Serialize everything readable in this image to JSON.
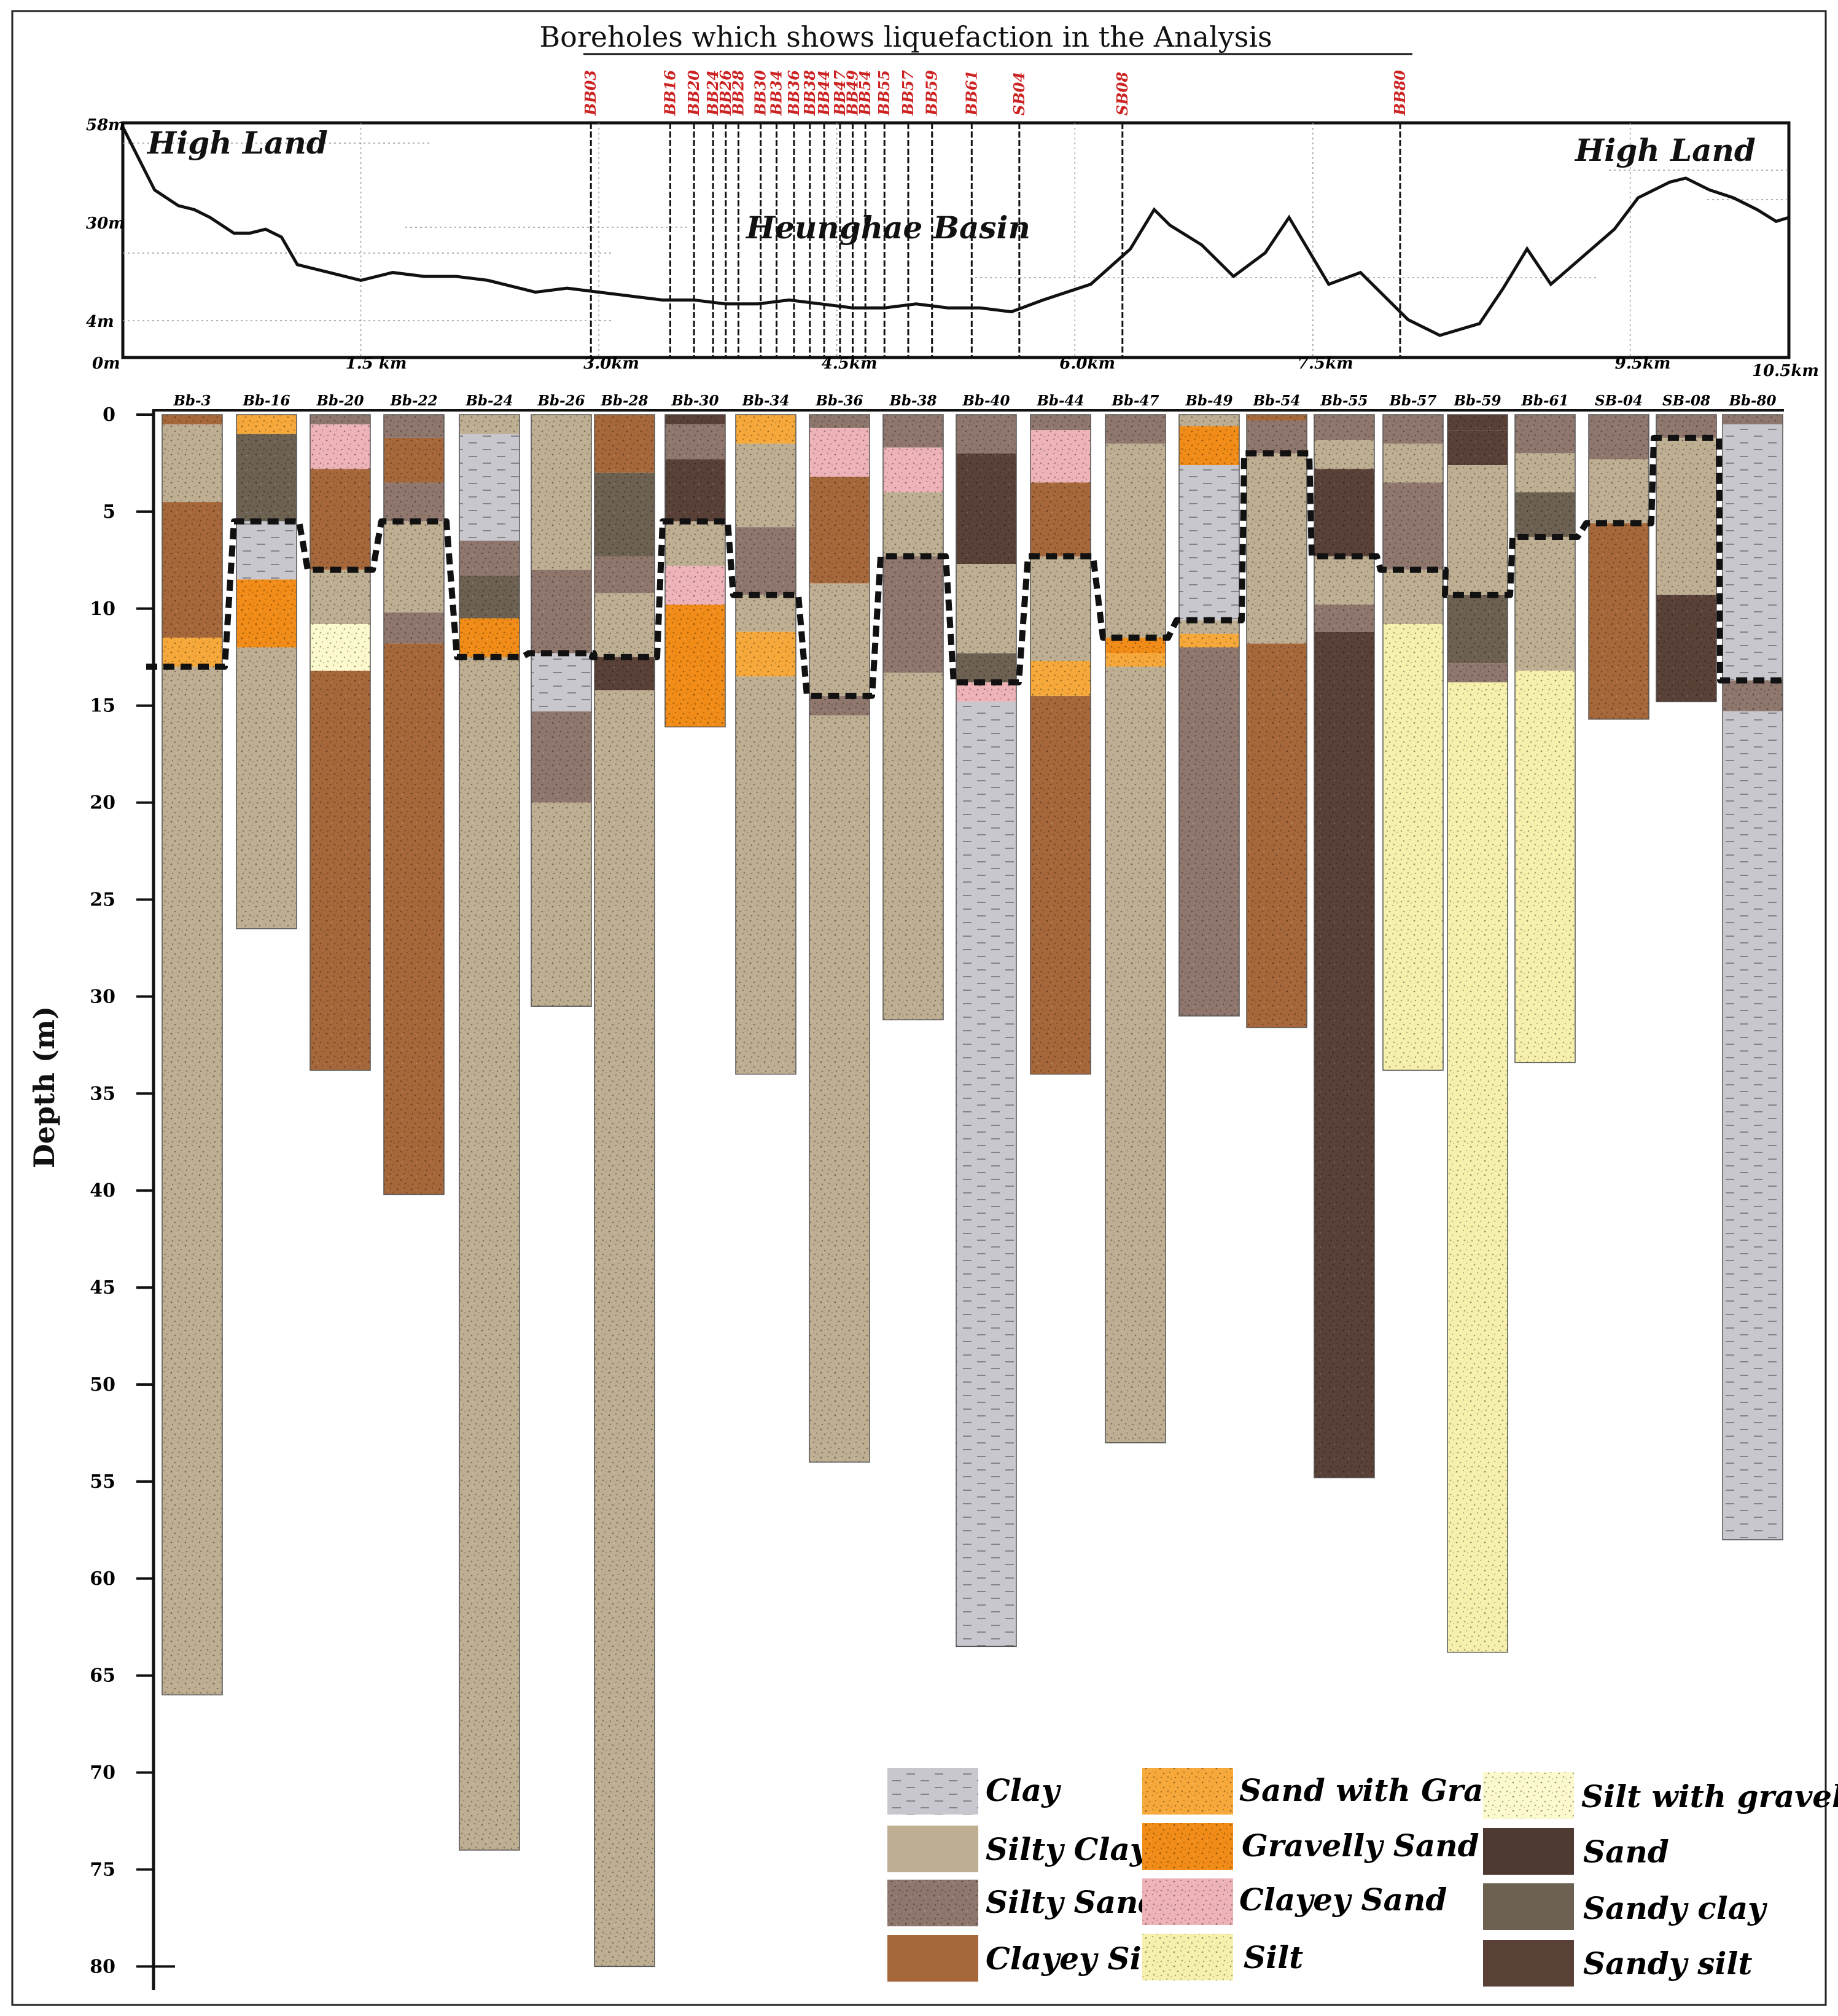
{
  "title": "Boreholes which shows liquefaction in the Analysis",
  "profile": {
    "basin_label": "Heunghae Basin",
    "high_land_left": "High Land",
    "high_land_right": "High Land",
    "elevation_labels": [
      "58m",
      "30m",
      "4m",
      "0m"
    ],
    "distance_labels": [
      "1.5 km",
      "3.0km",
      "4.5km",
      "6.0km",
      "7.5km",
      "9.5km",
      "10.5km"
    ],
    "elevation_profile_m": [
      [
        0,
        58
      ],
      [
        0.2,
        42
      ],
      [
        0.35,
        38
      ],
      [
        0.45,
        37
      ],
      [
        0.55,
        35
      ],
      [
        0.7,
        31
      ],
      [
        0.8,
        31
      ],
      [
        0.9,
        32
      ],
      [
        1.0,
        30
      ],
      [
        1.1,
        23
      ],
      [
        1.3,
        21
      ],
      [
        1.5,
        19
      ],
      [
        1.7,
        21
      ],
      [
        1.9,
        20
      ],
      [
        2.1,
        20
      ],
      [
        2.3,
        19
      ],
      [
        2.6,
        16
      ],
      [
        2.8,
        17
      ],
      [
        3.0,
        16
      ],
      [
        3.2,
        15
      ],
      [
        3.4,
        14
      ],
      [
        3.6,
        14
      ],
      [
        3.8,
        13
      ],
      [
        4.0,
        13
      ],
      [
        4.2,
        14
      ],
      [
        4.4,
        13
      ],
      [
        4.6,
        12
      ],
      [
        4.8,
        12
      ],
      [
        5.0,
        13
      ],
      [
        5.2,
        12
      ],
      [
        5.4,
        12
      ],
      [
        5.6,
        11
      ],
      [
        5.8,
        14
      ],
      [
        6.1,
        18
      ],
      [
        6.35,
        27
      ],
      [
        6.5,
        37
      ],
      [
        6.6,
        33
      ],
      [
        6.8,
        28
      ],
      [
        7.0,
        20
      ],
      [
        7.2,
        26
      ],
      [
        7.35,
        35
      ],
      [
        7.6,
        18
      ],
      [
        7.8,
        21
      ],
      [
        7.95,
        15
      ],
      [
        8.1,
        9
      ],
      [
        8.3,
        5
      ],
      [
        8.55,
        8
      ],
      [
        8.7,
        17
      ],
      [
        8.85,
        27
      ],
      [
        9.0,
        18
      ],
      [
        9.2,
        25
      ],
      [
        9.4,
        32
      ],
      [
        9.55,
        40
      ],
      [
        9.75,
        44
      ],
      [
        9.85,
        45
      ],
      [
        10.0,
        42
      ],
      [
        10.15,
        40
      ],
      [
        10.3,
        37
      ],
      [
        10.42,
        34
      ],
      [
        10.5,
        35
      ]
    ],
    "liquefied_boreholes": [
      {
        "label": "BB03",
        "km": 2.95
      },
      {
        "label": "BB16",
        "km": 3.45
      },
      {
        "label": "BB20",
        "km": 3.6
      },
      {
        "label": "BB24",
        "km": 3.72
      },
      {
        "label": "BB26",
        "km": 3.8
      },
      {
        "label": "BB28",
        "km": 3.88
      },
      {
        "label": "BB30",
        "km": 4.02
      },
      {
        "label": "BB34",
        "km": 4.12
      },
      {
        "label": "BB36",
        "km": 4.23
      },
      {
        "label": "BB38",
        "km": 4.33
      },
      {
        "label": "BB44",
        "km": 4.42
      },
      {
        "label": "BB47",
        "km": 4.52
      },
      {
        "label": "BB49",
        "km": 4.6
      },
      {
        "label": "BB54",
        "km": 4.68
      },
      {
        "label": "BB55",
        "km": 4.8
      },
      {
        "label": "BB57",
        "km": 4.95
      },
      {
        "label": "BB59",
        "km": 5.1
      },
      {
        "label": "BB61",
        "km": 5.35
      },
      {
        "label": "SB04",
        "km": 5.65
      },
      {
        "label": "SB08",
        "km": 6.3
      },
      {
        "label": "BB80",
        "km": 8.05
      }
    ]
  },
  "depth_axis": {
    "label": "Depth (m)",
    "ticks": [
      "0",
      "5",
      "10",
      "15",
      "20",
      "25",
      "30",
      "35",
      "40",
      "45",
      "50",
      "55",
      "60",
      "65",
      "70",
      "75",
      "80"
    ]
  },
  "boreholes": [
    {
      "name": "Bb-3",
      "layers": [
        [
          "Clayey Silt",
          0,
          0.5
        ],
        [
          "Silty Clay",
          0.5,
          4.5
        ],
        [
          "Clayey Silt",
          4.5,
          11.5
        ],
        [
          "Sand with Gravel",
          11.5,
          13
        ],
        [
          "Silty Clay",
          13,
          66
        ]
      ],
      "liq": 13
    },
    {
      "name": "Bb-16",
      "layers": [
        [
          "Sand with Gravel",
          0,
          1
        ],
        [
          "Sandy clay",
          1,
          5.5
        ],
        [
          "Clay",
          5.5,
          8.5
        ],
        [
          "Gravelly Sand",
          8.5,
          12
        ],
        [
          "Silty Clay",
          12,
          26.5
        ]
      ],
      "liq": 5.5
    },
    {
      "name": "Bb-20",
      "layers": [
        [
          "Silty Sand",
          0,
          0.5
        ],
        [
          "Clayey Sand",
          0.5,
          2.8
        ],
        [
          "Clayey Silt",
          2.8,
          8
        ],
        [
          "Silty Clay",
          8,
          10.8
        ],
        [
          "Silt with gravel",
          10.8,
          13.2
        ],
        [
          "Clayey Silt",
          13.2,
          33.8
        ]
      ],
      "liq": 8
    },
    {
      "name": "Bb-22",
      "layers": [
        [
          "Silty Sand",
          0,
          1.2
        ],
        [
          "Clayey Silt",
          1.2,
          3.5
        ],
        [
          "Silty Sand",
          3.5,
          5.5
        ],
        [
          "Silty Clay",
          5.5,
          10.2
        ],
        [
          "Silty Sand",
          10.2,
          11.8
        ],
        [
          "Clayey Silt",
          11.8,
          40.2
        ]
      ],
      "liq": 5.5
    },
    {
      "name": "Bb-24",
      "layers": [
        [
          "Silty Clay",
          0,
          1
        ],
        [
          "Clay",
          1,
          6.5
        ],
        [
          "Silty Sand",
          6.5,
          8.3
        ],
        [
          "Sandy clay",
          8.3,
          10.5
        ],
        [
          "Gravelly Sand",
          10.5,
          12.5
        ],
        [
          "Silty Clay",
          12.5,
          74
        ]
      ],
      "liq": 12.5
    },
    {
      "name": "Bb-26",
      "layers": [
        [
          "Silty Clay",
          0,
          8
        ],
        [
          "Silty Sand",
          8,
          12.3
        ],
        [
          "Clay",
          12.3,
          15.3
        ],
        [
          "Silty Sand",
          15.3,
          20
        ],
        [
          "Silty Clay",
          20,
          30.5
        ]
      ],
      "liq": 12.3
    },
    {
      "name": "Bb-28",
      "layers": [
        [
          "Clayey Silt",
          0,
          3
        ],
        [
          "Sandy clay",
          3,
          7.3
        ],
        [
          "Silty Sand",
          7.3,
          9.2
        ],
        [
          "Silty Clay",
          9.2,
          12.5
        ],
        [
          "Sandy silt",
          12.5,
          14.2
        ],
        [
          "Silty Clay",
          14.2,
          80
        ]
      ],
      "liq": 12.5
    },
    {
      "name": "Bb-30",
      "layers": [
        [
          "Sandy silt",
          0,
          0.5
        ],
        [
          "Silty Sand",
          0.5,
          2.3
        ],
        [
          "Sandy silt",
          2.3,
          5.5
        ],
        [
          "Silty Clay",
          5.5,
          7.8
        ],
        [
          "Clayey Sand",
          7.8,
          9.8
        ],
        [
          "Gravelly Sand",
          9.8,
          16.1
        ]
      ],
      "liq": 5.5
    },
    {
      "name": "Bb-34",
      "layers": [
        [
          "Sand with Gravel",
          0,
          1.5
        ],
        [
          "Silty Clay",
          1.5,
          5.8
        ],
        [
          "Silty Sand",
          5.8,
          9.3
        ],
        [
          "Silty Clay",
          9.3,
          11.2
        ],
        [
          "Sand with Gravel",
          11.2,
          13.5
        ],
        [
          "Silty Clay",
          13.5,
          34
        ]
      ],
      "liq": 9.3
    },
    {
      "name": "Bb-36",
      "layers": [
        [
          "Silty Sand",
          0,
          0.7
        ],
        [
          "Clayey Sand",
          0.7,
          3.2
        ],
        [
          "Clayey Silt",
          3.2,
          8.7
        ],
        [
          "Silty Clay",
          8.7,
          14.5
        ],
        [
          "Silty Sand",
          14.5,
          15.5
        ],
        [
          "Silty Clay",
          15.5,
          54
        ]
      ],
      "liq": 14.5
    },
    {
      "name": "Bb-38",
      "layers": [
        [
          "Silty Sand",
          0,
          1.7
        ],
        [
          "Clayey Sand",
          1.7,
          4
        ],
        [
          "Silty Clay",
          4,
          7.3
        ],
        [
          "Silty Sand",
          7.3,
          13.3
        ],
        [
          "Silty Clay",
          13.3,
          31.2
        ]
      ],
      "liq": 7.3
    },
    {
      "name": "Bb-40",
      "layers": [
        [
          "Silty Sand",
          0,
          2
        ],
        [
          "Sandy silt",
          2,
          7.7
        ],
        [
          "Silty Clay",
          7.7,
          12.3
        ],
        [
          "Sandy clay",
          12.3,
          13.8
        ],
        [
          "Clayey Sand",
          13.8,
          14.8
        ],
        [
          "Clay",
          14.8,
          63.5
        ]
      ],
      "liq": 13.8
    },
    {
      "name": "Bb-44",
      "layers": [
        [
          "Silty Sand",
          0,
          0.8
        ],
        [
          "Clayey Sand",
          0.8,
          3.5
        ],
        [
          "Clayey Silt",
          3.5,
          7.3
        ],
        [
          "Silty Clay",
          7.3,
          12.7
        ],
        [
          "Sand with Gravel",
          12.7,
          14.5
        ],
        [
          "Clayey Silt",
          14.5,
          34
        ]
      ],
      "liq": 7.3
    },
    {
      "name": "Bb-47",
      "layers": [
        [
          "Silty Sand",
          0,
          1.5
        ],
        [
          "Silty Clay",
          1.5,
          11.5
        ],
        [
          "Gravelly Sand",
          11.5,
          12.3
        ],
        [
          "Sand with Gravel",
          12.3,
          13
        ],
        [
          "Silty Clay",
          13,
          53
        ]
      ],
      "liq": 11.5
    },
    {
      "name": "Bb-49",
      "layers": [
        [
          "Silty Clay",
          0,
          0.6
        ],
        [
          "Gravelly Sand",
          0.6,
          2.6
        ],
        [
          "Clay",
          2.6,
          10.6
        ],
        [
          "Silty Clay",
          10.6,
          11.3
        ],
        [
          "Sand with Gravel",
          11.3,
          12
        ],
        [
          "Silty Sand",
          12,
          31
        ]
      ],
      "liq": 10.6
    },
    {
      "name": "Bb-54",
      "layers": [
        [
          "Clayey Silt",
          0,
          0.3
        ],
        [
          "Silty Sand",
          0.3,
          2
        ],
        [
          "Silty Clay",
          2,
          11.8
        ],
        [
          "Clayey Silt",
          11.8,
          31.6
        ]
      ],
      "liq": 2
    },
    {
      "name": "Bb-55",
      "layers": [
        [
          "Silty Sand",
          0,
          1.3
        ],
        [
          "Silty Clay",
          1.3,
          2.8
        ],
        [
          "Sandy silt",
          2.8,
          7.3
        ],
        [
          "Silty Clay",
          7.3,
          9.8
        ],
        [
          "Silty Sand",
          9.8,
          11.2
        ],
        [
          "Sandy silt",
          11.2,
          54.8
        ]
      ],
      "liq": 7.3
    },
    {
      "name": "Bb-57",
      "layers": [
        [
          "Silty Sand",
          0,
          1.5
        ],
        [
          "Silty Clay",
          1.5,
          3.5
        ],
        [
          "Silty Sand",
          3.5,
          8
        ],
        [
          "Silty Clay",
          8,
          10.8
        ],
        [
          "Silt",
          10.8,
          33.8
        ]
      ],
      "liq": 8
    },
    {
      "name": "Bb-59",
      "layers": [
        [
          "Sandy silt",
          0,
          0.8
        ],
        [
          "Sandy silt",
          0.8,
          2.6
        ],
        [
          "Silty Clay",
          2.6,
          9.3
        ],
        [
          "Sandy clay",
          9.3,
          12.8
        ],
        [
          "Silty Sand",
          12.8,
          13.8
        ],
        [
          "Silt",
          13.8,
          63.8
        ]
      ],
      "liq": 9.3
    },
    {
      "name": "Bb-61",
      "layers": [
        [
          "Silty Sand",
          0,
          2
        ],
        [
          "Silty Clay",
          2,
          4
        ],
        [
          "Sandy clay",
          4,
          6.3
        ],
        [
          "Silty Clay",
          6.3,
          13.2
        ],
        [
          "Silt",
          13.2,
          33.4
        ]
      ],
      "liq": 6.3
    },
    {
      "name": "SB-04",
      "layers": [
        [
          "Silty Sand",
          0,
          2.3
        ],
        [
          "Silty Clay",
          2.3,
          5.6
        ],
        [
          "Clayey Silt",
          5.6,
          15.7
        ]
      ],
      "liq": 5.6
    },
    {
      "name": "SB-08",
      "layers": [
        [
          "Silty Sand",
          0,
          1.2
        ],
        [
          "Silty Clay",
          1.2,
          9.3
        ],
        [
          "Sandy silt",
          9.3,
          14.8
        ]
      ],
      "liq": 1.2
    },
    {
      "name": "Bb-80",
      "layers": [
        [
          "Silty Sand",
          0,
          0.5
        ],
        [
          "Clay",
          0.5,
          13.7
        ],
        [
          "Silty Sand",
          13.7,
          15.3
        ],
        [
          "Clay",
          15.3,
          58
        ]
      ],
      "liq": 13.7
    }
  ],
  "legend": {
    "items": [
      {
        "name": "Clay",
        "color": "#c7c7cd"
      },
      {
        "name": "Silty Clay",
        "color": "#beae92"
      },
      {
        "name": "Silty Sand",
        "color": "#8f776e"
      },
      {
        "name": "Clayey Silt",
        "color": "#a6683a"
      },
      {
        "name": "Sand with Gravel",
        "color": "#f6a93a"
      },
      {
        "name": "Gravelly Sand",
        "color": "#f08c17"
      },
      {
        "name": "Clayey Sand",
        "color": "#eeb3b8"
      },
      {
        "name": "Silt",
        "color": "#f6f0ac"
      },
      {
        "name": "Silt with gravel",
        "color": "#fbf9cd"
      },
      {
        "name": "Sand",
        "color": "#4e3a33"
      },
      {
        "name": "Sandy clay",
        "color": "#6d6151"
      },
      {
        "name": "Sandy silt",
        "color": "#5a4138"
      }
    ]
  },
  "colors": {
    "liquefaction_line": "#111111",
    "borehole_label": "#cc2222",
    "frame": "#222222"
  }
}
